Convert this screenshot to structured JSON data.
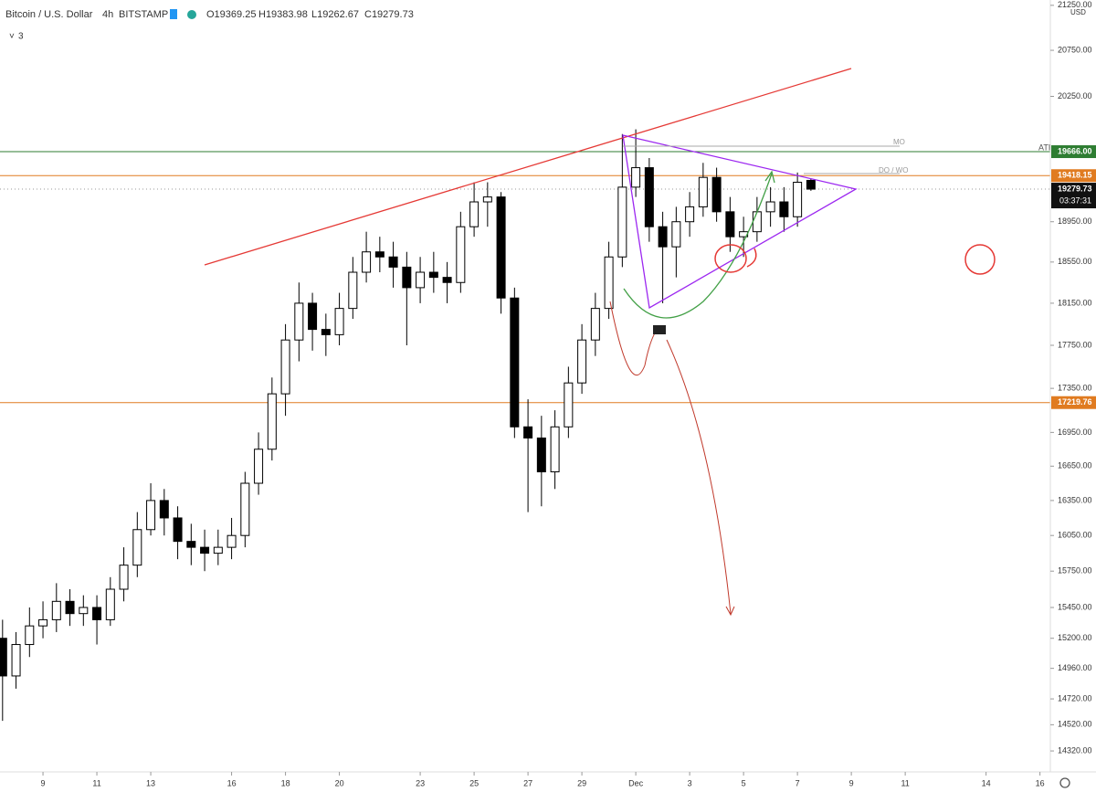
{
  "chart_data": {
    "type": "candlestick",
    "title": "Bitcoin / U.S. Dollar",
    "interval": "4h",
    "exchange": "BITSTAMP",
    "ohlc_labels": [
      "O19369.25",
      "H19383.98",
      "L19262.67",
      "C19279.73"
    ],
    "indicators_label": "3",
    "currency": "USD",
    "countdown": "03:37:31",
    "annotations": [
      "ATH",
      "MO",
      "DO / WO"
    ],
    "log_scale": true,
    "up_color": "#ffffff",
    "down_color": "#000000",
    "xlim": [
      -3.19,
      74.77
    ],
    "xticks": [
      {
        "value": 0,
        "label": "9"
      },
      {
        "value": 4,
        "label": "11"
      },
      {
        "value": 8,
        "label": "13"
      },
      {
        "value": 14,
        "label": "16"
      },
      {
        "value": 18,
        "label": "18"
      },
      {
        "value": 22,
        "label": "20"
      },
      {
        "value": 28,
        "label": "23"
      },
      {
        "value": 32,
        "label": "25"
      },
      {
        "value": 36,
        "label": "27"
      },
      {
        "value": 40,
        "label": "29"
      },
      {
        "value": 44,
        "label": "Dec"
      },
      {
        "value": 48,
        "label": "3"
      },
      {
        "value": 52,
        "label": "5"
      },
      {
        "value": 56,
        "label": "7"
      },
      {
        "value": 60,
        "label": "9"
      },
      {
        "value": 64,
        "label": "11"
      },
      {
        "value": 70,
        "label": "14"
      },
      {
        "value": 74,
        "label": "16"
      }
    ],
    "ylim": [
      14162,
      21310
    ],
    "yticks": [
      {
        "value": 21250,
        "label": "21250.00"
      },
      {
        "value": 20750,
        "label": "20750.00"
      },
      {
        "value": 20250,
        "label": "20250.00"
      },
      {
        "value": 18950,
        "label": "18950.00"
      },
      {
        "value": 18550,
        "label": "18550.00"
      },
      {
        "value": 18150,
        "label": "18150.00"
      },
      {
        "value": 17750,
        "label": "17750.00"
      },
      {
        "value": 17350,
        "label": "17350.00"
      },
      {
        "value": 16950,
        "label": "16950.00"
      },
      {
        "value": 16650,
        "label": "16650.00"
      },
      {
        "value": 16350,
        "label": "16350.00"
      },
      {
        "value": 16050,
        "label": "16050.00"
      },
      {
        "value": 15750,
        "label": "15750.00"
      },
      {
        "value": 15450,
        "label": "15450.00"
      },
      {
        "value": 15200,
        "label": "15200.00"
      },
      {
        "value": 14960,
        "label": "14960.00"
      },
      {
        "value": 14720,
        "label": "14720.00"
      },
      {
        "value": 14520,
        "label": "14520.00"
      },
      {
        "value": 14320,
        "label": "14320.00"
      }
    ],
    "price_lines": [
      {
        "value": 19666,
        "label": "19666.00",
        "color": "#2e7d32"
      },
      {
        "value": 19418.15,
        "label": "19418.15",
        "color": "#e07b20"
      },
      {
        "value": 17219.76,
        "label": "17219.76",
        "color": "#e07b20"
      }
    ],
    "last_price": {
      "value": 19279.73,
      "label": "19279.73"
    },
    "x": [
      -3,
      -2,
      -1,
      0,
      1,
      2,
      3,
      4,
      5,
      6,
      7,
      8,
      9,
      10,
      11,
      12,
      13,
      14,
      15,
      16,
      17,
      18,
      19,
      20,
      21,
      22,
      23,
      24,
      25,
      26,
      27,
      28,
      29,
      30,
      31,
      32,
      33,
      34,
      35,
      36,
      37,
      38,
      39,
      40,
      41,
      42,
      43,
      44,
      45,
      46,
      47,
      48,
      49,
      50,
      51,
      52,
      53,
      54,
      55,
      56,
      57
    ],
    "open": [
      15200,
      14900,
      15150,
      15300,
      15350,
      15500,
      15400,
      15450,
      15350,
      15600,
      15800,
      16100,
      16350,
      16200,
      16000,
      15950,
      15900,
      15950,
      16050,
      16500,
      16800,
      17300,
      17800,
      18150,
      17900,
      17850,
      18100,
      18450,
      18650,
      18600,
      18500,
      18300,
      18450,
      18400,
      18350,
      18900,
      19150,
      19200,
      18200,
      17000,
      16900,
      16600,
      17000,
      17400,
      17800,
      18100,
      18600,
      19300,
      19500,
      18900,
      18700,
      18950,
      19100,
      19400,
      19050,
      18800,
      18850,
      19050,
      19150,
      19000,
      19369.25
    ],
    "high": [
      15350,
      15250,
      15450,
      15500,
      15650,
      15600,
      15550,
      15550,
      15700,
      15950,
      16250,
      16500,
      16450,
      16300,
      16150,
      16100,
      16100,
      16200,
      16600,
      16950,
      17450,
      17950,
      18350,
      18250,
      18050,
      18250,
      18600,
      18850,
      18800,
      18750,
      18650,
      18600,
      18650,
      18550,
      19050,
      19350,
      19350,
      19250,
      18300,
      17250,
      17100,
      17150,
      17550,
      17950,
      18250,
      18750,
      19850,
      19900,
      19600,
      19050,
      19100,
      19250,
      19550,
      19500,
      19200,
      19000,
      19200,
      19300,
      19300,
      19450,
      19383.98
    ],
    "low": [
      14550,
      14800,
      15050,
      15200,
      15250,
      15300,
      15300,
      15150,
      15300,
      15500,
      15700,
      16050,
      16050,
      15850,
      15800,
      15750,
      15800,
      15850,
      15950,
      16400,
      16700,
      17100,
      17600,
      17700,
      17650,
      17750,
      18000,
      18350,
      18450,
      18300,
      17750,
      18150,
      18250,
      18150,
      18250,
      18800,
      18900,
      18050,
      16900,
      16250,
      16300,
      16450,
      16900,
      17300,
      17650,
      18000,
      18500,
      19200,
      18750,
      18150,
      18400,
      18800,
      19000,
      18950,
      18650,
      18600,
      18750,
      18900,
      18850,
      18900,
      19262.67
    ],
    "close": [
      14900,
      15150,
      15300,
      15350,
      15500,
      15400,
      15450,
      15350,
      15600,
      15800,
      16100,
      16350,
      16200,
      16000,
      15950,
      15900,
      15950,
      16050,
      16500,
      16800,
      17300,
      17800,
      18150,
      17900,
      17850,
      18100,
      18450,
      18650,
      18600,
      18500,
      18300,
      18450,
      18400,
      18350,
      18900,
      19150,
      19200,
      18200,
      17000,
      16900,
      16600,
      17000,
      17400,
      17800,
      18100,
      18600,
      19300,
      19500,
      18900,
      18700,
      18950,
      19100,
      19400,
      19050,
      18800,
      18850,
      19050,
      19150,
      19000,
      19350,
      19279.73
    ]
  }
}
